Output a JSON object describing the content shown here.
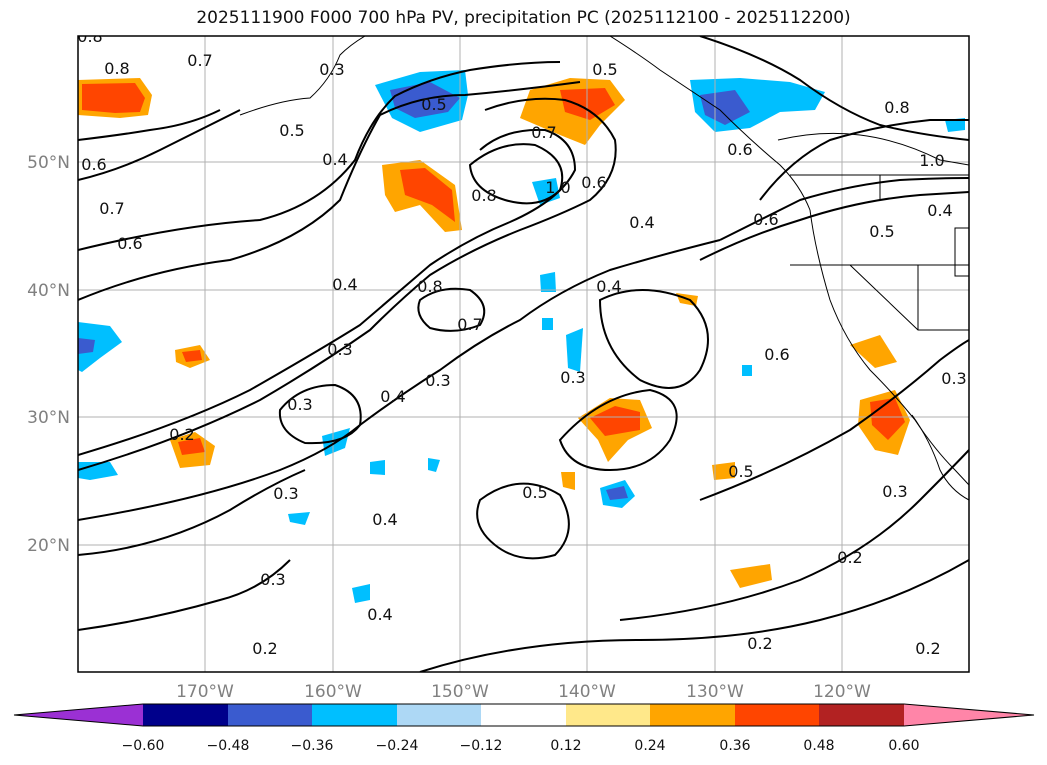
{
  "title": "2025111900 F000 700 hPa PV, precipitation PC (2025112100 - 2025112200)",
  "map": {
    "lon_ticks": [
      "170°W",
      "160°W",
      "150°W",
      "140°W",
      "130°W",
      "120°W"
    ],
    "lat_ticks": [
      "50°N",
      "40°N",
      "30°N",
      "20°N"
    ],
    "contour_labels": [
      "0.8",
      "0.7",
      "0.5",
      "0.6",
      "0.4",
      "0.7",
      "0.6",
      "0.3",
      "0.5",
      "0.4",
      "0.8",
      "1.0",
      "0.7",
      "0.6",
      "0.4",
      "0.8",
      "0.5",
      "0.4",
      "0.8",
      "0.6",
      "0.7",
      "0.3",
      "0.4",
      "0.3",
      "0.2",
      "0.3",
      "0.2",
      "0.4",
      "0.3",
      "0.5",
      "0.5",
      "0.3",
      "0.3",
      "0.4",
      "0.3",
      "0.2",
      "0.2",
      "0.6",
      "1.0",
      "0.4",
      "0.5",
      "0.6",
      "0.8",
      "0.2",
      "0.3"
    ]
  },
  "colorbar": {
    "ticks": [
      "−0.60",
      "−0.48",
      "−0.36",
      "−0.24",
      "−0.12",
      "0.12",
      "0.24",
      "0.36",
      "0.48",
      "0.60"
    ],
    "colors": [
      "#9b30d4",
      "#00008b",
      "#3a5bcf",
      "#00bfff",
      "#add8f5",
      "#ffffff",
      "#ffe88a",
      "#ffa500",
      "#ff4500",
      "#b22222",
      "#ff85a8"
    ]
  }
}
